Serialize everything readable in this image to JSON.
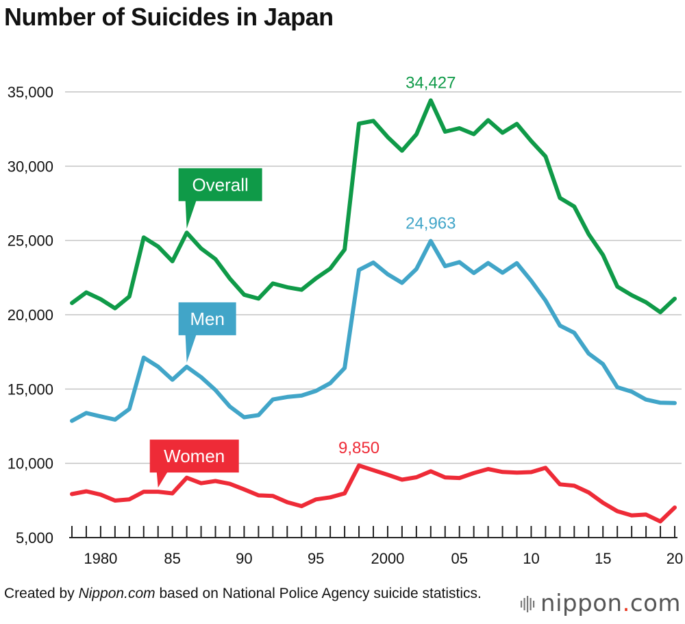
{
  "title": "Number of Suicides in Japan",
  "chart_data": {
    "type": "line",
    "title": "Number of Suicides in Japan",
    "x": [
      1978,
      1979,
      1980,
      1981,
      1982,
      1983,
      1984,
      1985,
      1986,
      1987,
      1988,
      1989,
      1990,
      1991,
      1992,
      1993,
      1994,
      1995,
      1996,
      1997,
      1998,
      1999,
      2000,
      2001,
      2002,
      2003,
      2004,
      2005,
      2006,
      2007,
      2008,
      2009,
      2010,
      2011,
      2012,
      2013,
      2014,
      2015,
      2016,
      2017,
      2018,
      2019,
      2020
    ],
    "series": [
      {
        "name": "Overall",
        "color": "#0f9a48",
        "values": [
          20788,
          21503,
          21048,
          20434,
          21228,
          25202,
          24596,
          23599,
          25524,
          24460,
          23742,
          22436,
          21346,
          21084,
          22104,
          21851,
          21679,
          22445,
          23104,
          24391,
          32863,
          33048,
          31957,
          31042,
          32143,
          34427,
          32325,
          32552,
          32155,
          33093,
          32249,
          32845,
          31690,
          30651,
          27858,
          27283,
          25427,
          24025,
          21897,
          21321,
          20840,
          20169,
          21081
        ]
      },
      {
        "name": "Men",
        "color": "#41a5c8",
        "values": [
          12859,
          13386,
          13155,
          12942,
          13654,
          17116,
          16508,
          15624,
          16497,
          15802,
          14934,
          13818,
          13102,
          13242,
          14296,
          14468,
          14560,
          14874,
          15393,
          16416,
          23013,
          23512,
          22727,
          22144,
          23080,
          24963,
          23272,
          23540,
          22813,
          23478,
          22831,
          23472,
          22283,
          20955,
          19273,
          18787,
          17386,
          16681,
          15121,
          14826,
          14290,
          14078,
          14055
        ]
      },
      {
        "name": "Women",
        "color": "#ee2b37",
        "values": [
          7929,
          8117,
          7893,
          7492,
          7574,
          8086,
          8088,
          7975,
          9027,
          8658,
          8808,
          8618,
          8244,
          7842,
          7808,
          7383,
          7119,
          7571,
          7711,
          7975,
          9850,
          9536,
          9230,
          8898,
          9063,
          9464,
          9053,
          9012,
          9342,
          9615,
          9418,
          9373,
          9407,
          9696,
          8585,
          8496,
          8041,
          7344,
          6776,
          6495,
          6550,
          6091,
          7026
        ]
      }
    ],
    "ylim": [
      5000,
      36000
    ],
    "y_ticks": [
      5000,
      10000,
      15000,
      20000,
      25000,
      30000,
      35000
    ],
    "y_tick_labels": [
      "5,000",
      "10,000",
      "15,000",
      "20,000",
      "25,000",
      "30,000",
      "35,000"
    ],
    "x_tick_years": [
      1980,
      1985,
      1990,
      1995,
      2000,
      2005,
      2010,
      2015,
      2020
    ],
    "x_tick_labels": [
      "1980",
      "85",
      "90",
      "95",
      "2000",
      "05",
      "10",
      "15",
      "20"
    ],
    "xlabel": "",
    "ylabel": "",
    "grid": true,
    "callouts": [
      {
        "series": "Overall",
        "text": "Overall",
        "year": 1986
      },
      {
        "series": "Men",
        "text": "Men",
        "year": 1986
      },
      {
        "series": "Women",
        "text": "Women",
        "year": 1984
      }
    ],
    "peak_labels": [
      {
        "series": "Overall",
        "text": "34,427",
        "year": 2003
      },
      {
        "series": "Men",
        "text": "24,963",
        "year": 2003
      },
      {
        "series": "Women",
        "text": "9,850",
        "year": 1998
      }
    ]
  },
  "footer": {
    "credit_prefix": "Created by ",
    "credit_site": "Nippon.com",
    "credit_suffix": " based on National Police Agency suicide statistics.",
    "brand_main": "nippon",
    "brand_dot": ".",
    "brand_tld": "com",
    "brand_color": "#e8341c"
  }
}
